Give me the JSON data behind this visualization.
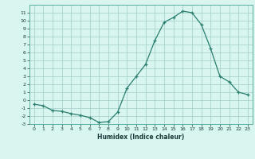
{
  "x": [
    0,
    1,
    2,
    3,
    4,
    5,
    6,
    7,
    8,
    9,
    10,
    11,
    12,
    13,
    14,
    15,
    16,
    17,
    18,
    19,
    20,
    21,
    22,
    23
  ],
  "y": [
    -0.5,
    -0.7,
    -1.3,
    -1.4,
    -1.7,
    -1.9,
    -2.2,
    -2.8,
    -2.7,
    -1.5,
    1.5,
    3.0,
    4.5,
    7.5,
    9.8,
    10.4,
    11.2,
    11.0,
    9.5,
    6.5,
    3.0,
    2.3,
    1.0,
    0.7
  ],
  "xlabel": "Humidex (Indice chaleur)",
  "line_color": "#2a7f6f",
  "marker": "+",
  "bg_color": "#d8f5f0",
  "grid_color": "#a0ccc5",
  "ylim": [
    -3,
    12
  ],
  "xlim": [
    -0.5,
    23.5
  ],
  "yticks": [
    -3,
    -2,
    -1,
    0,
    1,
    2,
    3,
    4,
    5,
    6,
    7,
    8,
    9,
    10,
    11
  ],
  "xticks": [
    0,
    1,
    2,
    3,
    4,
    5,
    6,
    7,
    8,
    9,
    10,
    11,
    12,
    13,
    14,
    15,
    16,
    17,
    18,
    19,
    20,
    21,
    22,
    23
  ]
}
